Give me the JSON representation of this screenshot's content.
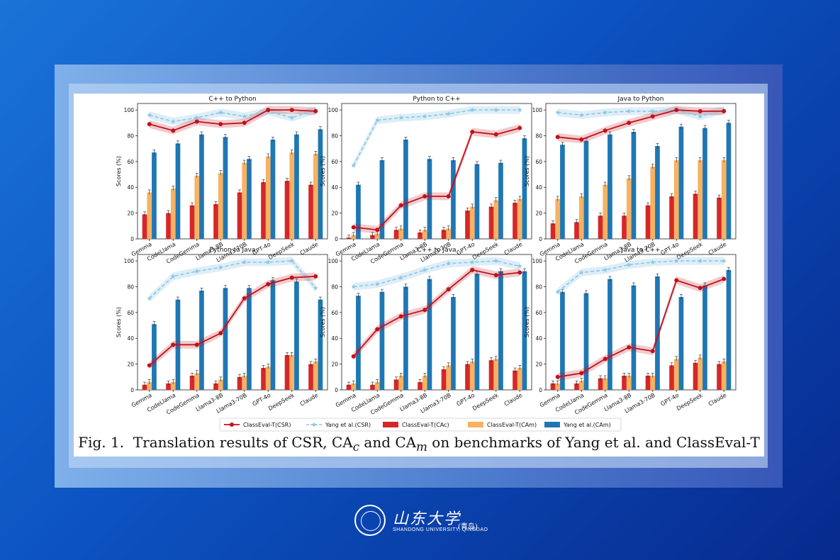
{
  "caption": "Fig. 1.  Translation results of CSR, CAc and CAm on benchmarks of Yang et al. and ClassEval-T",
  "footer": {
    "brand_cn": "山东大学",
    "city_cn": "(青岛)",
    "brand_en": "SHANDONG UNIVERSITY, QINGDAO"
  },
  "colors": {
    "csr_classeval": "#c0111b",
    "csr_yang": "#8ec6e6",
    "cac": "#d62728",
    "cam_classeval": "#f8b262",
    "cam_yang": "#1f77b4"
  },
  "legend": [
    {
      "label": "ClassEval-T(CSR)",
      "kind": "line-dot",
      "color": "#c0111b"
    },
    {
      "label": "Yang et al.(CSR)",
      "kind": "line-star",
      "color": "#8ec6e6"
    },
    {
      "label": "ClassEval-T(CAc)",
      "kind": "patch",
      "color": "#d62728"
    },
    {
      "label": "ClassEval-T(CAm)",
      "kind": "patch",
      "color": "#f8b262"
    },
    {
      "label": "Yang et al.(CAm)",
      "kind": "patch",
      "color": "#1f77b4"
    }
  ],
  "chart_data": [
    {
      "type": "bar",
      "title": "C++ to Python",
      "ylabel": "Scores (%)",
      "ylim": [
        0,
        105
      ],
      "yticks": [
        0,
        20,
        40,
        60,
        80,
        100
      ],
      "categories": [
        "Gemma",
        "CodeLlama",
        "CodeGemma",
        "Llama3-8B",
        "Llama3-70B",
        "GPT-4o",
        "DeepSeek",
        "Claude"
      ],
      "series": [
        {
          "name": "ClassEval-T(CAc)",
          "values": [
            19,
            20,
            26,
            27,
            36,
            44,
            45,
            42
          ]
        },
        {
          "name": "ClassEval-T(CAm)",
          "values": [
            36,
            39,
            49,
            51,
            59,
            64,
            67,
            66
          ]
        },
        {
          "name": "Yang et al.(CAm)",
          "values": [
            67,
            74,
            81,
            79,
            62,
            77,
            81,
            85
          ]
        },
        {
          "name": "ClassEval-T(CSR)",
          "values": [
            89,
            84,
            91,
            89,
            90,
            100,
            100,
            99
          ]
        },
        {
          "name": "Yang et al.(CSR)",
          "values": [
            96,
            91,
            94,
            98,
            95,
            99,
            94,
            100
          ]
        }
      ]
    },
    {
      "type": "bar",
      "title": "Python to C++",
      "ylabel": "Scores (%)",
      "ylim": [
        0,
        105
      ],
      "yticks": [
        0,
        20,
        40,
        60,
        80,
        100
      ],
      "categories": [
        "Gemma",
        "CodeLlama",
        "CodeGemma",
        "Llama3-8B",
        "Llama3-70B",
        "GPT-4o",
        "DeepSeek",
        "Claude"
      ],
      "series": [
        {
          "name": "ClassEval-T(CAc)",
          "values": [
            1,
            3,
            7,
            5,
            7,
            22,
            25,
            28
          ]
        },
        {
          "name": "ClassEval-T(CAm)",
          "values": [
            3,
            4,
            8,
            7,
            8,
            25,
            30,
            31
          ]
        },
        {
          "name": "Yang et al.(CAm)",
          "values": [
            42,
            61,
            77,
            62,
            61,
            58,
            59,
            78
          ]
        },
        {
          "name": "ClassEval-T(CSR)",
          "values": [
            9,
            7,
            26,
            33,
            33,
            83,
            81,
            86
          ]
        },
        {
          "name": "Yang et al.(CSR)",
          "values": [
            57,
            92,
            94,
            95,
            97,
            100,
            100,
            100
          ]
        }
      ]
    },
    {
      "type": "bar",
      "title": "Java to Python",
      "ylabel": "Scores (%)",
      "ylim": [
        0,
        105
      ],
      "yticks": [
        0,
        20,
        40,
        60,
        80,
        100
      ],
      "categories": [
        "Gemma",
        "CodeLlama",
        "CodeGemma",
        "Llama3-8B",
        "Llama3-70B",
        "GPT-4o",
        "DeepSeek",
        "Claude"
      ],
      "series": [
        {
          "name": "ClassEval-T(CAc)",
          "values": [
            12,
            13,
            18,
            18,
            26,
            33,
            35,
            32
          ]
        },
        {
          "name": "ClassEval-T(CAm)",
          "values": [
            31,
            33,
            42,
            47,
            56,
            61,
            61,
            61
          ]
        },
        {
          "name": "Yang et al.(CAm)",
          "values": [
            73,
            76,
            81,
            83,
            72,
            87,
            86,
            90
          ]
        },
        {
          "name": "ClassEval-T(CSR)",
          "values": [
            79,
            77,
            84,
            90,
            95,
            100,
            99,
            99
          ]
        },
        {
          "name": "Yang et al.(CSR)",
          "values": [
            98,
            96,
            98,
            99,
            99,
            100,
            95,
            100
          ]
        }
      ]
    },
    {
      "type": "bar",
      "title": "Python to Java",
      "ylabel": "Scores (%)",
      "ylim": [
        0,
        105
      ],
      "yticks": [
        0,
        20,
        40,
        60,
        80,
        100
      ],
      "categories": [
        "Gemma",
        "CodeLlama",
        "CodeGemma",
        "Llama3-8B",
        "Llama3-70B",
        "GPT-4o",
        "DeepSeek",
        "Claude"
      ],
      "series": [
        {
          "name": "ClassEval-T(CAc)",
          "values": [
            4,
            5,
            11,
            5,
            10,
            17,
            27,
            20
          ]
        },
        {
          "name": "ClassEval-T(CAm)",
          "values": [
            6,
            6,
            13,
            8,
            11,
            18,
            27,
            22
          ]
        },
        {
          "name": "Yang et al.(CAm)",
          "values": [
            51,
            70,
            77,
            79,
            79,
            85,
            84,
            70
          ]
        },
        {
          "name": "ClassEval-T(CSR)",
          "values": [
            19,
            35,
            35,
            44,
            71,
            82,
            87,
            88
          ]
        },
        {
          "name": "Yang et al.(CSR)",
          "values": [
            71,
            88,
            92,
            95,
            99,
            99,
            100,
            79
          ]
        }
      ]
    },
    {
      "type": "bar",
      "title": "C++ to Java",
      "ylabel": "Scores (%)",
      "ylim": [
        0,
        105
      ],
      "yticks": [
        0,
        20,
        40,
        60,
        80,
        100
      ],
      "categories": [
        "Gemma",
        "CodeLlama",
        "CodeGemma",
        "Llama3-8B",
        "Llama3-70B",
        "GPT-4o",
        "DeepSeek",
        "Claude"
      ],
      "series": [
        {
          "name": "ClassEval-T(CAc)",
          "values": [
            4,
            4,
            8,
            6,
            16,
            20,
            23,
            15
          ]
        },
        {
          "name": "ClassEval-T(CAm)",
          "values": [
            5,
            6,
            11,
            11,
            19,
            22,
            24,
            17
          ]
        },
        {
          "name": "Yang et al.(CAm)",
          "values": [
            73,
            76,
            80,
            86,
            72,
            90,
            92,
            92
          ]
        },
        {
          "name": "ClassEval-T(CSR)",
          "values": [
            26,
            47,
            57,
            62,
            78,
            93,
            89,
            91
          ]
        },
        {
          "name": "Yang et al.(CSR)",
          "values": [
            80,
            82,
            87,
            93,
            98,
            99,
            100,
            96
          ]
        }
      ]
    },
    {
      "type": "bar",
      "title": "Java to C++",
      "ylabel": "Scores (%)",
      "ylim": [
        0,
        105
      ],
      "yticks": [
        0,
        20,
        40,
        60,
        80,
        100
      ],
      "categories": [
        "Gemma",
        "CodeLlama",
        "CodeGemma",
        "Llama3-8B",
        "Llama3-70B",
        "GPT-4o",
        "DeepSeek",
        "Claude"
      ],
      "series": [
        {
          "name": "ClassEval-T(CAc)",
          "values": [
            5,
            5,
            9,
            11,
            11,
            19,
            21,
            20
          ]
        },
        {
          "name": "ClassEval-T(CAm)",
          "values": [
            5,
            7,
            9,
            11,
            11,
            24,
            25,
            22
          ]
        },
        {
          "name": "Yang et al.(CAm)",
          "values": [
            76,
            75,
            86,
            81,
            88,
            72,
            81,
            93
          ]
        },
        {
          "name": "ClassEval-T(CSR)",
          "values": [
            10,
            13,
            24,
            33,
            30,
            85,
            79,
            86
          ]
        },
        {
          "name": "Yang et al.(CSR)",
          "values": [
            76,
            91,
            93,
            97,
            99,
            100,
            100,
            100
          ]
        }
      ]
    }
  ]
}
